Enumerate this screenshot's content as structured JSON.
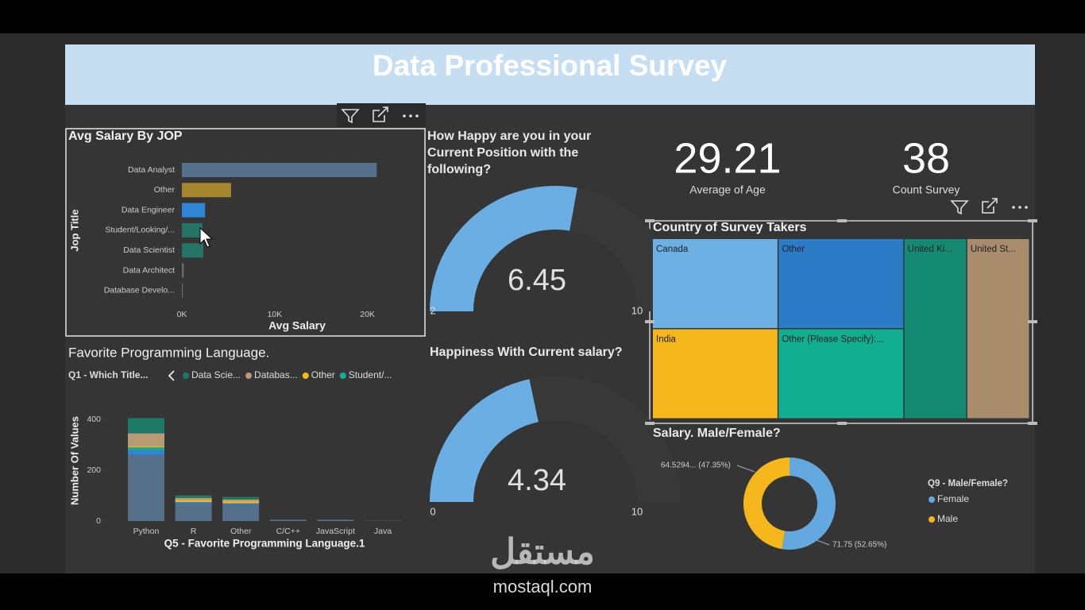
{
  "header": {
    "title": "Data Professional Survey"
  },
  "watermark": {
    "logo": "مستقل",
    "site": "mostaql.com"
  },
  "chart_data": [
    {
      "type": "bar",
      "orientation": "horizontal",
      "title": "Avg Salary By JOP",
      "categories": [
        "Data Analyst",
        "Other",
        "Data Engineer",
        "Student/Looking/...",
        "Data Scientist",
        "Data Architect",
        "Database Develo..."
      ],
      "values": [
        21000,
        5300,
        2500,
        2200,
        2300,
        200,
        100
      ],
      "colors": [
        "#55708b",
        "#a8862f",
        "#2f86d6",
        "#257566",
        "#257566",
        "#6b6b6b",
        "#6b6b6b"
      ],
      "xlim": [
        0,
        25000
      ],
      "xticks": [
        {
          "value": 0,
          "label": "0K"
        },
        {
          "value": 10000,
          "label": "10K"
        },
        {
          "value": 20000,
          "label": "20K"
        }
      ],
      "xlabel": "Avg Salary",
      "ylabel": "Jop Title"
    },
    {
      "type": "gauge",
      "title": "How Happy are you in your Current Position with the following?",
      "value": 6.45,
      "min": 2,
      "max": 10,
      "color": "#6aaee4"
    },
    {
      "type": "gauge",
      "title": "Happiness With Current salary?",
      "value": 4.34,
      "min": 0,
      "max": 10,
      "color": "#6aaee4"
    },
    {
      "type": "card",
      "value": 29.21,
      "label": "Average of Age"
    },
    {
      "type": "card",
      "value": 38,
      "label": "Count Survey"
    },
    {
      "type": "treemap",
      "title": "Country of Survey Takers",
      "categories": [
        "Canada",
        "Other",
        "United Ki...",
        "United St...",
        "India",
        "Other (Please Specify):..."
      ],
      "values": [
        6,
        6,
        6,
        6,
        6,
        6
      ],
      "colors": [
        "#6cb0e4",
        "#2b7bc6",
        "#148a72",
        "#a88c6b",
        "#f5b71b",
        "#12ae92"
      ]
    },
    {
      "type": "bar",
      "stacked": true,
      "title": "Favorite Programming Language.",
      "legend_title": "Q1 - Which Title...",
      "categories": [
        "Python",
        "R",
        "Other",
        "C/C++",
        "JavaScript",
        "Java"
      ],
      "series": [
        {
          "color": "#55708b",
          "values": [
            260,
            70,
            65,
            5,
            5,
            1
          ]
        },
        {
          "color": "#2f86d6",
          "values": [
            20,
            5,
            5,
            0,
            0,
            0
          ]
        },
        {
          "name": "Student/...",
          "color": "#12ae92",
          "values": [
            10,
            0,
            0,
            0,
            0,
            0
          ]
        },
        {
          "name": "Other",
          "color": "#f5b71b",
          "values": [
            5,
            8,
            8,
            0,
            0,
            0
          ]
        },
        {
          "name": "Databas...",
          "color": "#b89b72",
          "values": [
            50,
            8,
            7,
            0,
            0,
            0
          ]
        },
        {
          "name": "Data Scie...",
          "color": "#1e7a68",
          "values": [
            60,
            10,
            10,
            0,
            0,
            0
          ]
        }
      ],
      "legend_order": [
        5,
        4,
        3,
        2
      ],
      "ylim": [
        0,
        450
      ],
      "yticks": [
        0,
        200,
        400
      ],
      "xlabel": "Q5 - Favorite Programming Language.1",
      "ylabel": "Number Of Values"
    },
    {
      "type": "pie",
      "donut": true,
      "title": "Salary. Male/Female?",
      "legend_title": "Q9 - Male/Female?",
      "categories": [
        "Female",
        "Male"
      ],
      "values": [
        71.75,
        64.5294
      ],
      "value_labels": [
        "71.75 (52.65%)",
        "64.5294... (47.35%)"
      ],
      "colors": [
        "#63a9e0",
        "#f5b71b"
      ]
    }
  ]
}
